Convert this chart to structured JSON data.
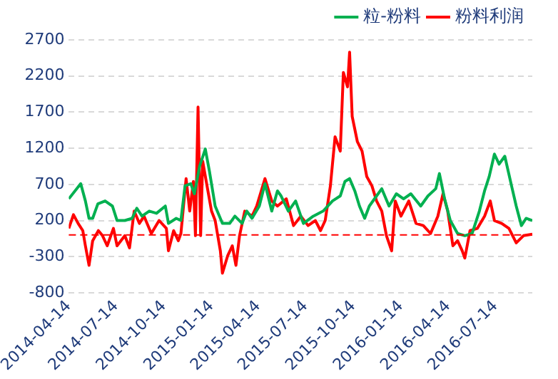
{
  "chart_data": {
    "type": "line",
    "legend": "top",
    "grid": "y",
    "ylim": [
      -800,
      2700
    ],
    "yticks": [
      -800,
      -300,
      200,
      700,
      1200,
      1700,
      2200,
      2700
    ],
    "xlim": [
      "2014-04-14",
      "2016-09-23"
    ],
    "xticks": [
      "2014-04-14",
      "2014-07-14",
      "2014-10-14",
      "2015-01-14",
      "2015-04-14",
      "2015-07-14",
      "2015-10-14",
      "2016-01-14",
      "2016-04-14",
      "2016-07-14"
    ],
    "ref_lines": [
      {
        "axis": "y",
        "value": 0,
        "color": "#ff0000",
        "line_style": "dashed"
      }
    ],
    "series": [
      {
        "name": "粒-粉料",
        "color": "#00b050",
        "x": [
          "2014-04-14",
          "2014-05-07",
          "2014-05-16",
          "2014-05-23",
          "2014-05-30",
          "2014-06-09",
          "2014-06-23",
          "2014-07-07",
          "2014-07-16",
          "2014-07-31",
          "2014-08-14",
          "2014-08-23",
          "2014-09-02",
          "2014-09-16",
          "2014-09-30",
          "2014-10-17",
          "2014-10-23",
          "2014-11-07",
          "2014-11-16",
          "2014-11-24",
          "2014-12-05",
          "2014-12-12",
          "2014-12-22",
          "2015-01-02",
          "2015-01-10",
          "2015-01-21",
          "2015-02-04",
          "2015-02-18",
          "2015-02-28",
          "2015-03-14",
          "2015-03-23",
          "2015-04-02",
          "2015-04-16",
          "2015-04-27",
          "2015-05-10",
          "2015-05-21",
          "2015-05-28",
          "2015-06-11",
          "2015-06-25",
          "2015-07-10",
          "2015-07-29",
          "2015-08-17",
          "2015-09-04",
          "2015-09-19",
          "2015-09-28",
          "2015-10-07",
          "2015-10-17",
          "2015-10-26",
          "2015-11-05",
          "2015-11-14",
          "2015-11-28",
          "2015-12-08",
          "2015-12-22",
          "2016-01-05",
          "2016-01-19",
          "2016-02-02",
          "2016-02-21",
          "2016-03-06",
          "2016-03-21",
          "2016-03-28",
          "2016-04-07",
          "2016-04-18",
          "2016-05-02",
          "2016-05-16",
          "2016-05-30",
          "2016-06-13",
          "2016-06-23",
          "2016-07-02",
          "2016-07-12",
          "2016-07-21",
          "2016-08-01",
          "2016-08-14",
          "2016-08-23",
          "2016-09-02",
          "2016-09-11",
          "2016-09-23"
        ],
        "values": [
          500,
          710,
          470,
          230,
          230,
          430,
          470,
          400,
          200,
          200,
          230,
          370,
          260,
          330,
          300,
          400,
          160,
          230,
          200,
          680,
          710,
          570,
          950,
          1190,
          880,
          400,
          160,
          160,
          260,
          160,
          330,
          230,
          400,
          710,
          330,
          610,
          540,
          330,
          470,
          160,
          260,
          330,
          470,
          540,
          740,
          780,
          610,
          400,
          230,
          400,
          540,
          640,
          400,
          570,
          500,
          570,
          400,
          540,
          640,
          850,
          500,
          200,
          20,
          -10,
          20,
          330,
          610,
          810,
          1120,
          980,
          1090,
          680,
          400,
          130,
          230,
          200
        ]
      },
      {
        "name": "粉料利润",
        "color": "#ff0000",
        "x": [
          "2014-04-14",
          "2014-04-23",
          "2014-05-02",
          "2014-05-11",
          "2014-05-16",
          "2014-05-23",
          "2014-05-30",
          "2014-06-10",
          "2014-06-18",
          "2014-06-27",
          "2014-07-09",
          "2014-07-16",
          "2014-07-31",
          "2014-08-09",
          "2014-08-18",
          "2014-08-28",
          "2014-09-06",
          "2014-09-20",
          "2014-10-05",
          "2014-10-19",
          "2014-10-23",
          "2014-11-02",
          "2014-11-11",
          "2014-11-16",
          "2014-11-26",
          "2014-12-03",
          "2014-12-10",
          "2014-12-14",
          "2014-12-19",
          "2014-12-24",
          "2014-12-28",
          "2015-01-07",
          "2015-01-14",
          "2015-01-21",
          "2015-01-31",
          "2015-02-04",
          "2015-02-14",
          "2015-02-23",
          "2015-03-02",
          "2015-03-09",
          "2015-03-19",
          "2015-04-02",
          "2015-04-11",
          "2015-04-27",
          "2015-05-10",
          "2015-05-21",
          "2015-06-07",
          "2015-06-21",
          "2015-07-05",
          "2015-07-19",
          "2015-08-02",
          "2015-08-12",
          "2015-08-21",
          "2015-08-31",
          "2015-09-09",
          "2015-09-19",
          "2015-09-25",
          "2015-10-03",
          "2015-10-07",
          "2015-10-12",
          "2015-10-22",
          "2015-10-31",
          "2015-11-09",
          "2015-11-19",
          "2015-11-28",
          "2015-12-08",
          "2015-12-17",
          "2015-12-27",
          "2016-01-03",
          "2016-01-14",
          "2016-01-29",
          "2016-02-12",
          "2016-02-26",
          "2016-03-11",
          "2016-03-25",
          "2016-04-04",
          "2016-04-13",
          "2016-04-23",
          "2016-05-02",
          "2016-05-11",
          "2016-05-16",
          "2016-05-26",
          "2016-06-09",
          "2016-06-23",
          "2016-07-04",
          "2016-07-12",
          "2016-07-26",
          "2016-08-09",
          "2016-08-23",
          "2016-09-06",
          "2016-09-23"
        ],
        "values": [
          90,
          280,
          160,
          60,
          -150,
          -420,
          -80,
          60,
          -10,
          -150,
          90,
          -150,
          -10,
          -180,
          330,
          160,
          260,
          20,
          200,
          90,
          -220,
          60,
          -80,
          20,
          780,
          330,
          740,
          -10,
          1770,
          -10,
          1020,
          610,
          330,
          200,
          -220,
          -530,
          -290,
          -150,
          -420,
          -10,
          330,
          260,
          400,
          780,
          470,
          400,
          500,
          130,
          260,
          130,
          200,
          60,
          200,
          680,
          1360,
          1160,
          2250,
          2050,
          2530,
          1640,
          1290,
          1160,
          810,
          680,
          470,
          330,
          -10,
          -220,
          470,
          260,
          470,
          160,
          130,
          20,
          260,
          570,
          330,
          -150,
          -80,
          -220,
          -320,
          60,
          90,
          260,
          470,
          200,
          160,
          90,
          -110,
          -10,
          10
        ]
      }
    ]
  }
}
